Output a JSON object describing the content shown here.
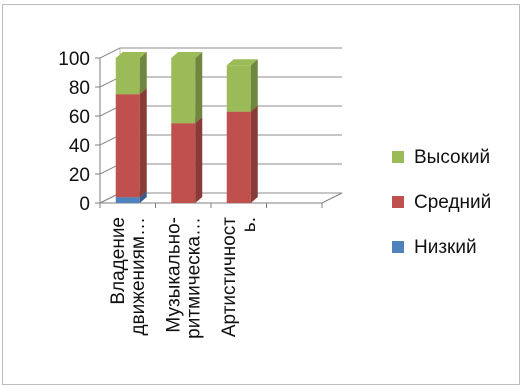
{
  "chart_data": {
    "type": "bar",
    "stacked": true,
    "three_d": true,
    "categories": [
      "Владение движениям…",
      "Музыкально-ритмическа…",
      "Артистичность"
    ],
    "category_label_lines": [
      [
        "Владение",
        "движениям…"
      ],
      [
        "Музыкально-",
        "ритмическа…"
      ],
      [
        "Артистичност",
        "ь."
      ]
    ],
    "series": [
      {
        "name": "Низкий",
        "color": "#4f81bd",
        "values": [
          4,
          0,
          0
        ]
      },
      {
        "name": "Средний",
        "color": "#c0504d",
        "values": [
          71,
          55,
          63
        ]
      },
      {
        "name": "Высокий",
        "color": "#9bbb59",
        "values": [
          25,
          45,
          32
        ]
      }
    ],
    "yticks": [
      0,
      20,
      40,
      60,
      80,
      100
    ],
    "ylim": [
      0,
      100
    ],
    "grid": true,
    "legend_position": "right"
  }
}
